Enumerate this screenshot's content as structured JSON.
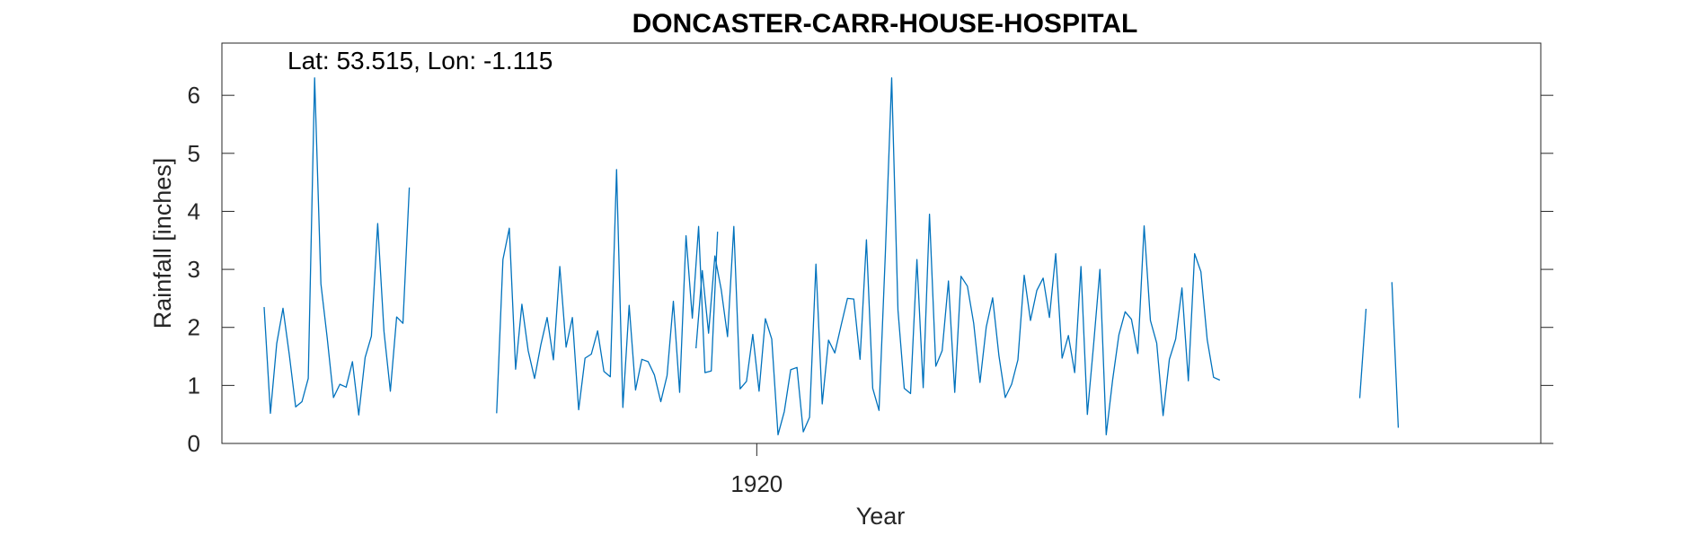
{
  "chart_data": {
    "type": "line",
    "title": "DONCASTER-CARR-HOUSE-HOSPITAL",
    "xlabel": "Year",
    "ylabel": "Rainfall [inches]",
    "annotation": "Lat: 53.515, Lon: -1.115",
    "xlim": [
      1903.9,
      1943.6
    ],
    "ylim": [
      0,
      6.9
    ],
    "xticks": [
      1920
    ],
    "xtick_labels": [
      "1920"
    ],
    "yticks": [
      0,
      1,
      2,
      3,
      4,
      5,
      6
    ],
    "ytick_labels": [
      "0",
      "1",
      "2",
      "3",
      "4",
      "5",
      "6"
    ],
    "grid": false,
    "legend": "none",
    "box": true,
    "series": [
      {
        "color": "#0072BD",
        "segments": [
          {
            "x_start": 1905.17,
            "x_step": 0.19,
            "values": [
              2.35,
              0.52,
              1.72,
              2.33,
              1.52,
              0.63,
              0.72,
              1.12,
              6.3,
              2.75,
              1.82,
              0.79,
              1.02,
              0.97,
              1.41,
              0.49,
              1.48,
              1.85,
              3.79,
              1.93,
              0.9,
              2.18,
              2.07,
              4.41
            ]
          },
          {
            "x_start": 1912.17,
            "x_step": 0.19,
            "values": [
              0.52,
              3.17,
              3.71,
              1.28,
              2.4,
              1.6,
              1.12,
              1.7,
              2.17,
              1.44,
              3.05,
              1.66,
              2.17,
              0.58,
              1.47,
              1.54,
              1.94,
              1.24,
              1.15,
              4.72,
              0.62,
              2.38,
              0.92,
              1.45,
              1.41,
              1.18,
              0.72,
              1.17,
              2.45,
              0.88,
              3.58,
              2.16,
              3.74,
              1.22,
              1.25,
              3.65
            ]
          },
          {
            "x_start": 1918.17,
            "x_step": 0.19,
            "values": [
              1.64,
              2.98,
              1.9,
              3.23,
              2.65,
              1.84,
              3.74,
              0.94,
              1.07,
              1.88,
              0.9,
              2.15,
              1.8,
              0.15,
              0.55,
              1.27,
              1.31,
              0.2,
              0.45,
              3.09,
              0.68,
              1.78,
              1.56,
              2.04,
              2.5,
              2.49,
              1.45,
              3.51,
              0.95,
              0.57,
              3.25,
              6.3,
              2.3,
              0.95,
              0.86,
              3.17,
              0.96,
              3.95,
              1.33,
              1.6,
              2.8,
              0.88,
              2.88,
              2.71,
              2.07,
              1.05,
              2.01,
              2.51,
              1.51,
              0.79,
              1.02,
              1.44,
              2.9,
              2.12,
              2.64,
              2.85,
              2.17,
              3.27,
              1.47,
              1.86,
              1.22,
              3.05,
              0.5,
              1.71,
              3.0,
              0.15,
              1.09,
              1.87,
              2.27,
              2.14,
              1.55,
              3.75,
              2.12,
              1.73,
              0.48,
              1.45,
              1.8,
              2.68,
              1.08,
              3.27,
              2.96,
              1.79,
              1.14,
              1.09
            ]
          },
          {
            "x_start": 1938.15,
            "x_step": 0.19,
            "values": [
              0.78,
              2.32
            ]
          },
          {
            "x_start": 1939.12,
            "x_step": 0.19,
            "values": [
              2.78,
              0.27
            ]
          }
        ]
      }
    ]
  }
}
